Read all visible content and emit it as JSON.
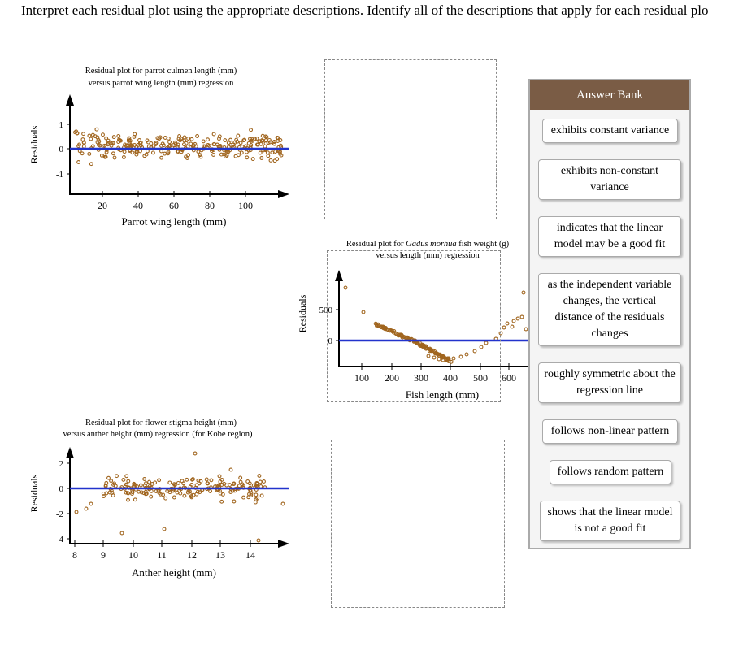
{
  "instructions": "Interpret each residual plot using the appropriate descriptions. Identify all of the descriptions that apply for each residual plo",
  "answer_bank": {
    "title": "Answer Bank",
    "items": [
      "exhibits constant variance",
      "exhibits non-constant variance",
      "indicates that the linear model may be a good fit",
      "as the independent variable changes, the vertical distance of the residuals changes",
      "roughly symmetric about the regression line",
      "follows non-linear pattern",
      "follows random pattern",
      "shows that the linear model is not a good fit"
    ]
  },
  "colors": {
    "points": "#a0651e",
    "regression_line": "#2233cc",
    "bank_header": "#7a5c45"
  },
  "chart_data": [
    {
      "type": "scatter",
      "title": "Residual plot for parrot culmen length (mm) versus parrot wing length (mm) regression",
      "xlabel": "Parrot wing length (mm)",
      "ylabel": "Residuals",
      "x_ticks": [
        "20",
        "40",
        "60",
        "80",
        "100"
      ],
      "y_ticks": [
        "1",
        "0",
        "-1"
      ],
      "xlim": [
        5,
        120
      ],
      "ylim": [
        -1.8,
        1.9
      ],
      "pattern": "fan",
      "point_count": 280
    },
    {
      "type": "scatter",
      "title": "Residual plot for Gadus morhua fish weight (g) versus length (mm) regression",
      "title_parts": [
        "Residual plot for ",
        "Gadus morhua",
        " fish weight (g)"
      ],
      "title_line2": "versus length (mm) regression",
      "xlabel": "Fish length (mm)",
      "ylabel": "Residuals",
      "x_ticks": [
        "100",
        "200",
        "300",
        "400",
        "500",
        "600"
      ],
      "y_ticks": [
        "500",
        "0"
      ],
      "xlim": [
        50,
        650
      ],
      "ylim": [
        -400,
        1000
      ],
      "pattern": "curve",
      "point_count": 120
    },
    {
      "type": "scatter",
      "title": "Residual plot for flower stigma height (mm) versus anther height (mm) regression (for Kobe region)",
      "xlabel": "Anther height (mm)",
      "ylabel": "Residuals",
      "x_ticks": [
        "8",
        "9",
        "10",
        "11",
        "12",
        "13",
        "14"
      ],
      "y_ticks": [
        "2",
        "0",
        "-2",
        "-4"
      ],
      "xlim": [
        7.8,
        15
      ],
      "ylim": [
        -4.5,
        3.5
      ],
      "pattern": "random",
      "point_count": 190
    }
  ]
}
